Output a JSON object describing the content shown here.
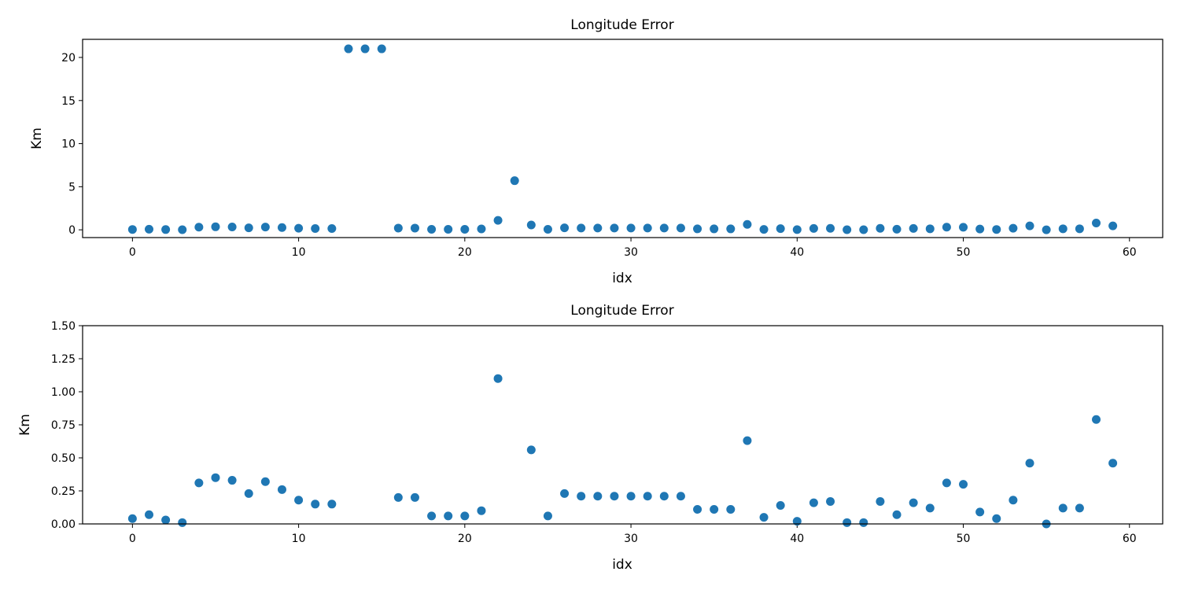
{
  "chart_data": [
    {
      "type": "scatter",
      "title": "Longitude Error",
      "xlabel": "idx",
      "ylabel": "Km",
      "xlim": [
        -3,
        62
      ],
      "ylim": [
        -0.9,
        22.1
      ],
      "xticks": [
        0,
        10,
        20,
        30,
        40,
        50,
        60
      ],
      "yticks": [
        0,
        5,
        10,
        15,
        20
      ],
      "ytick_labels": [
        "0",
        "5",
        "10",
        "15",
        "20"
      ],
      "grid": false,
      "color": "#1f77b4",
      "series": [
        {
          "x": [
            0,
            1,
            2,
            3,
            4,
            5,
            6,
            7,
            8,
            9,
            10,
            11,
            12,
            13,
            14,
            15,
            16,
            17,
            18,
            19,
            20,
            21,
            22,
            23,
            24,
            25,
            26,
            27,
            28,
            29,
            30,
            31,
            32,
            33,
            34,
            35,
            36,
            37,
            38,
            39,
            40,
            41,
            42,
            43,
            44,
            45,
            46,
            47,
            48,
            49,
            50,
            51,
            52,
            53,
            54,
            55,
            56,
            57,
            58,
            59
          ],
          "y": [
            0.04,
            0.07,
            0.03,
            0.01,
            0.31,
            0.35,
            0.33,
            0.23,
            0.32,
            0.26,
            0.18,
            0.15,
            0.15,
            21.0,
            21.0,
            21.0,
            0.2,
            0.2,
            0.06,
            0.06,
            0.06,
            0.1,
            1.1,
            5.7,
            0.56,
            0.06,
            0.23,
            0.21,
            0.21,
            0.21,
            0.21,
            0.21,
            0.21,
            0.21,
            0.11,
            0.11,
            0.11,
            0.63,
            0.05,
            0.14,
            0.02,
            0.16,
            0.17,
            0.01,
            0.01,
            0.17,
            0.07,
            0.16,
            0.12,
            0.31,
            0.3,
            0.09,
            0.04,
            0.18,
            0.46,
            0.0,
            0.12,
            0.12,
            0.79,
            0.46
          ]
        }
      ]
    },
    {
      "type": "scatter",
      "title": "Longitude Error",
      "xlabel": "idx",
      "ylabel": "Km",
      "xlim": [
        -3,
        62
      ],
      "ylim": [
        0,
        1.5
      ],
      "xticks": [
        0,
        10,
        20,
        30,
        40,
        50,
        60
      ],
      "yticks": [
        0,
        0.25,
        0.5,
        0.75,
        1.0,
        1.25,
        1.5
      ],
      "ytick_labels": [
        "0.00",
        "0.25",
        "0.50",
        "0.75",
        "1.00",
        "1.25",
        "1.50"
      ],
      "grid": false,
      "color": "#1f77b4",
      "series": [
        {
          "x": [
            0,
            1,
            2,
            3,
            4,
            5,
            6,
            7,
            8,
            9,
            10,
            11,
            12,
            16,
            17,
            18,
            19,
            20,
            21,
            22,
            24,
            25,
            26,
            27,
            28,
            29,
            30,
            31,
            32,
            33,
            34,
            35,
            36,
            37,
            38,
            39,
            40,
            41,
            42,
            43,
            44,
            45,
            46,
            47,
            48,
            49,
            50,
            51,
            52,
            53,
            54,
            55,
            56,
            57,
            58,
            59
          ],
          "y": [
            0.04,
            0.07,
            0.03,
            0.01,
            0.31,
            0.35,
            0.33,
            0.23,
            0.32,
            0.26,
            0.18,
            0.15,
            0.15,
            0.2,
            0.2,
            0.06,
            0.06,
            0.06,
            0.1,
            1.1,
            0.56,
            0.06,
            0.23,
            0.21,
            0.21,
            0.21,
            0.21,
            0.21,
            0.21,
            0.21,
            0.11,
            0.11,
            0.11,
            0.63,
            0.05,
            0.14,
            0.02,
            0.16,
            0.17,
            0.01,
            0.01,
            0.17,
            0.07,
            0.16,
            0.12,
            0.31,
            0.3,
            0.09,
            0.04,
            0.18,
            0.46,
            0.0,
            0.12,
            0.12,
            0.79,
            0.46
          ]
        }
      ]
    }
  ]
}
